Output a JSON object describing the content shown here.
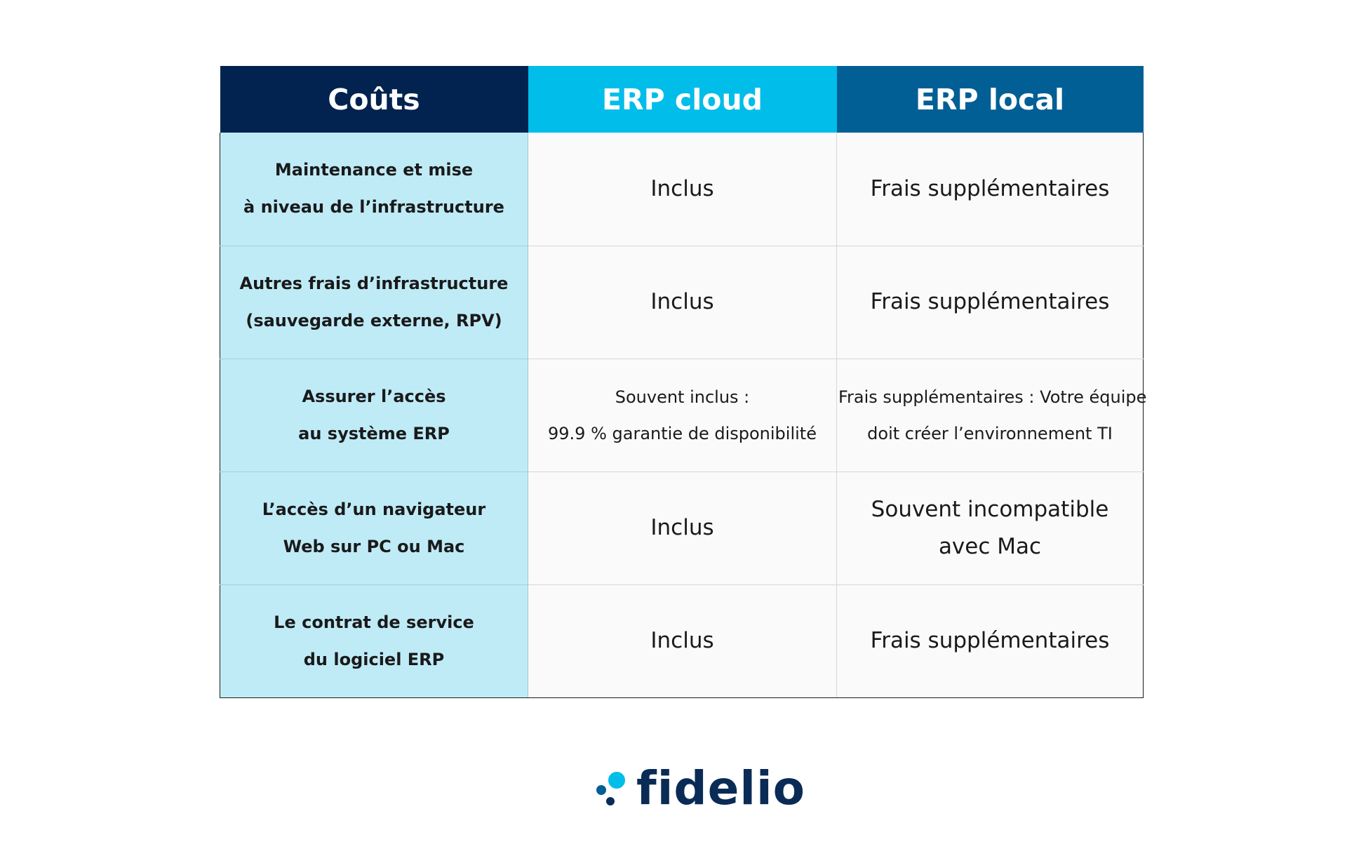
{
  "table": {
    "headers": [
      "Coûts",
      "ERP cloud",
      "ERP local"
    ],
    "rows": [
      {
        "label": [
          "Maintenance et mise",
          "à niveau de l’infrastructure"
        ],
        "cloud": [
          "Inclus"
        ],
        "local": [
          "Frais supplémentaires"
        ]
      },
      {
        "label": [
          "Autres frais d’infrastructure",
          "(sauvegarde externe, RPV)"
        ],
        "cloud": [
          "Inclus"
        ],
        "local": [
          "Frais supplémentaires"
        ]
      },
      {
        "label": [
          "Assurer l’accès",
          "au système ERP"
        ],
        "cloud": [
          "Souvent inclus :",
          "99.9 % garantie de disponibilité"
        ],
        "local": [
          "Frais supplémentaires : Votre équipe",
          "doit créer l’environnement TI"
        ]
      },
      {
        "label": [
          "L’accès d’un navigateur",
          "Web sur PC ou Mac"
        ],
        "cloud": [
          "Inclus"
        ],
        "local": [
          "Souvent incompatible",
          "avec Mac"
        ]
      },
      {
        "label": [
          "Le contrat de service",
          "du logiciel ERP"
        ],
        "cloud": [
          "Inclus"
        ],
        "local": [
          "Frais supplémentaires"
        ]
      }
    ]
  },
  "logo": {
    "text": "fidelio",
    "colors": {
      "text": "#0a2b55",
      "dot_large": "#00bde9",
      "dot_medium": "#025f95",
      "dot_small": "#0a2b55"
    }
  },
  "colors": {
    "header_costs": "#02234f",
    "header_cloud": "#00bde9",
    "header_local": "#025f95",
    "label_column": "#bfebf7",
    "value_cells": "#fafafa"
  }
}
